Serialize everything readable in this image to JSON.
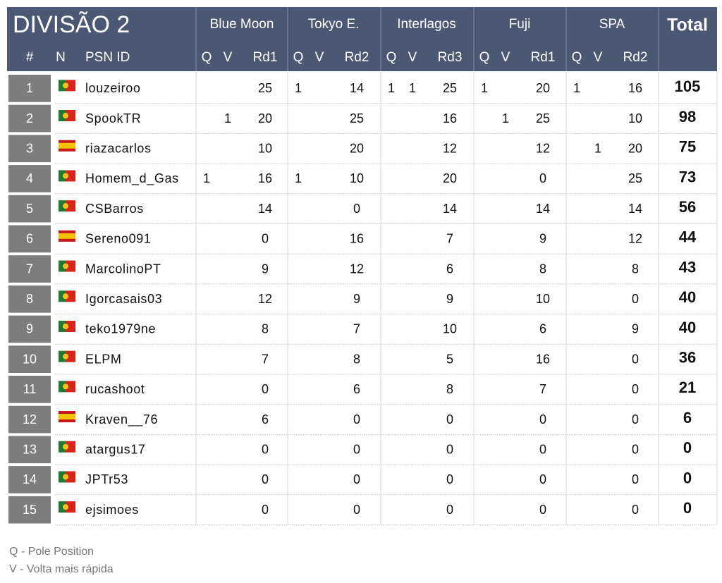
{
  "header": {
    "title": "DIVISÃO 2",
    "pos_label": "#",
    "nation_label": "N",
    "name_label": "PSN ID",
    "total_label": "Total",
    "sub_labels": [
      "Q",
      "V"
    ],
    "tracks": [
      {
        "name": "Blue Moon",
        "round": "Rd1"
      },
      {
        "name": "Tokyo E.",
        "round": "Rd2"
      },
      {
        "name": "Interlagos",
        "round": "Rd3"
      },
      {
        "name": "Fuji",
        "round": "Rd1"
      },
      {
        "name": "SPA",
        "round": "Rd2"
      }
    ]
  },
  "table": {
    "rows": [
      {
        "pos": 1,
        "flag": "pt",
        "name": "louzeiroo",
        "results": [
          [
            null,
            null,
            25
          ],
          [
            1,
            null,
            14
          ],
          [
            1,
            1,
            25
          ],
          [
            1,
            null,
            20
          ],
          [
            1,
            null,
            16
          ]
        ],
        "total": 105
      },
      {
        "pos": 2,
        "flag": "pt",
        "name": "SpookTR",
        "results": [
          [
            null,
            1,
            20
          ],
          [
            null,
            null,
            25
          ],
          [
            null,
            null,
            16
          ],
          [
            null,
            1,
            25
          ],
          [
            null,
            null,
            10
          ]
        ],
        "total": 98
      },
      {
        "pos": 3,
        "flag": "es",
        "name": "riazacarlos",
        "results": [
          [
            null,
            null,
            10
          ],
          [
            null,
            null,
            20
          ],
          [
            null,
            null,
            12
          ],
          [
            null,
            null,
            12
          ],
          [
            null,
            1,
            20
          ]
        ],
        "total": 75
      },
      {
        "pos": 4,
        "flag": "pt",
        "name": "Homem_d_Gas",
        "results": [
          [
            1,
            null,
            16
          ],
          [
            1,
            null,
            10
          ],
          [
            null,
            null,
            20
          ],
          [
            null,
            null,
            0
          ],
          [
            null,
            null,
            25
          ]
        ],
        "total": 73
      },
      {
        "pos": 5,
        "flag": "pt",
        "name": "CSBarros",
        "results": [
          [
            null,
            null,
            14
          ],
          [
            null,
            null,
            0
          ],
          [
            null,
            null,
            14
          ],
          [
            null,
            null,
            14
          ],
          [
            null,
            null,
            14
          ]
        ],
        "total": 56
      },
      {
        "pos": 6,
        "flag": "es",
        "name": "Sereno091",
        "results": [
          [
            null,
            null,
            0
          ],
          [
            null,
            null,
            16
          ],
          [
            null,
            null,
            7
          ],
          [
            null,
            null,
            9
          ],
          [
            null,
            null,
            12
          ]
        ],
        "total": 44
      },
      {
        "pos": 7,
        "flag": "pt",
        "name": "MarcolinoPT",
        "results": [
          [
            null,
            null,
            9
          ],
          [
            null,
            null,
            12
          ],
          [
            null,
            null,
            6
          ],
          [
            null,
            null,
            8
          ],
          [
            null,
            null,
            8
          ]
        ],
        "total": 43
      },
      {
        "pos": 8,
        "flag": "pt",
        "name": "Igorcasais03",
        "results": [
          [
            null,
            null,
            12
          ],
          [
            null,
            null,
            9
          ],
          [
            null,
            null,
            9
          ],
          [
            null,
            null,
            10
          ],
          [
            null,
            null,
            0
          ]
        ],
        "total": 40
      },
      {
        "pos": 9,
        "flag": "pt",
        "name": "teko1979ne",
        "results": [
          [
            null,
            null,
            8
          ],
          [
            null,
            null,
            7
          ],
          [
            null,
            null,
            10
          ],
          [
            null,
            null,
            6
          ],
          [
            null,
            null,
            9
          ]
        ],
        "total": 40
      },
      {
        "pos": 10,
        "flag": "pt",
        "name": "ELPM",
        "results": [
          [
            null,
            null,
            7
          ],
          [
            null,
            null,
            8
          ],
          [
            null,
            null,
            5
          ],
          [
            null,
            null,
            16
          ],
          [
            null,
            null,
            0
          ]
        ],
        "total": 36
      },
      {
        "pos": 11,
        "flag": "pt",
        "name": "rucashoot",
        "results": [
          [
            null,
            null,
            0
          ],
          [
            null,
            null,
            6
          ],
          [
            null,
            null,
            8
          ],
          [
            null,
            null,
            7
          ],
          [
            null,
            null,
            0
          ]
        ],
        "total": 21
      },
      {
        "pos": 12,
        "flag": "es",
        "name": "Kraven__76",
        "results": [
          [
            null,
            null,
            6
          ],
          [
            null,
            null,
            0
          ],
          [
            null,
            null,
            0
          ],
          [
            null,
            null,
            0
          ],
          [
            null,
            null,
            0
          ]
        ],
        "total": 6
      },
      {
        "pos": 13,
        "flag": "pt",
        "name": "atargus17",
        "results": [
          [
            null,
            null,
            0
          ],
          [
            null,
            null,
            0
          ],
          [
            null,
            null,
            0
          ],
          [
            null,
            null,
            0
          ],
          [
            null,
            null,
            0
          ]
        ],
        "total": 0
      },
      {
        "pos": 14,
        "flag": "pt",
        "name": "JPTr53",
        "results": [
          [
            null,
            null,
            0
          ],
          [
            null,
            null,
            0
          ],
          [
            null,
            null,
            0
          ],
          [
            null,
            null,
            0
          ],
          [
            null,
            null,
            0
          ]
        ],
        "total": 0
      },
      {
        "pos": 15,
        "flag": "pt",
        "name": "ejsimoes",
        "results": [
          [
            null,
            null,
            0
          ],
          [
            null,
            null,
            0
          ],
          [
            null,
            null,
            0
          ],
          [
            null,
            null,
            0
          ],
          [
            null,
            null,
            0
          ]
        ],
        "total": 0
      }
    ]
  },
  "legend": [
    "Q - Pole Position",
    "V - Volta mais rápida"
  ]
}
